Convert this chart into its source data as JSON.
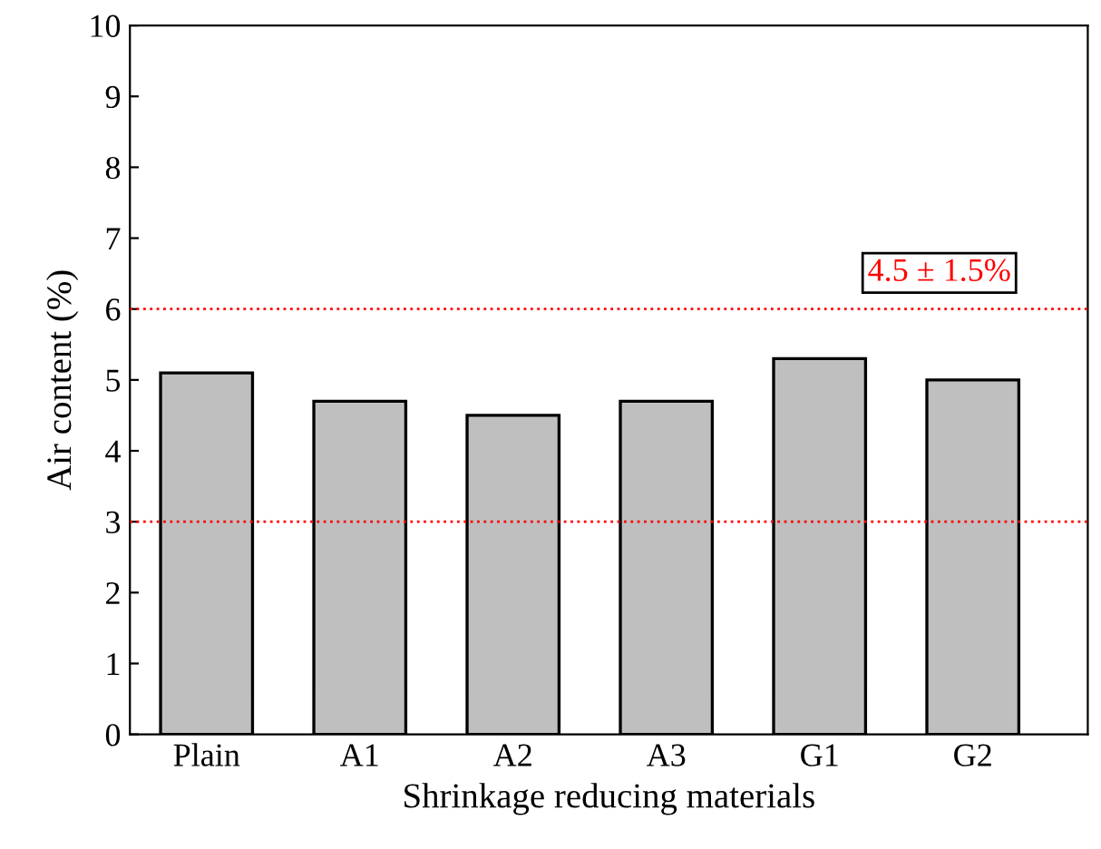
{
  "chart_data": {
    "type": "bar",
    "xlabel": "Shrinkage reducing materials",
    "ylabel": "Air content (%)",
    "categories": [
      "Plain",
      "A1",
      "A2",
      "A3",
      "G1",
      "G2"
    ],
    "values": [
      5.1,
      4.7,
      4.5,
      4.7,
      5.3,
      5.0
    ],
    "color": "#bfbfbf",
    "ylim": [
      0,
      10
    ],
    "yticks": [
      0,
      1,
      2,
      3,
      4,
      5,
      6,
      7,
      8,
      9,
      10
    ],
    "grid": false,
    "legend": false,
    "ref_lines": [
      {
        "axis": "y",
        "value": 6,
        "color": "#ff0000",
        "line_style": "dotted"
      },
      {
        "axis": "y",
        "value": 3,
        "color": "#ff0000",
        "line_style": "dotted"
      }
    ],
    "annotations": [
      "4.5 ± 1.5%"
    ]
  }
}
